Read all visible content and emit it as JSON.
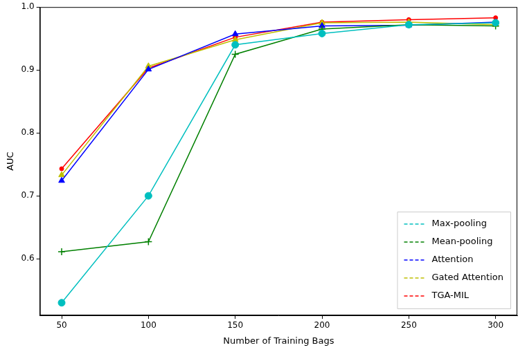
{
  "chart_data": {
    "type": "line",
    "x_label": "Number of Training Bags",
    "y_label": "AUC",
    "x": [
      50,
      100,
      150,
      200,
      250,
      300
    ],
    "xlim": [
      37.5,
      312.5
    ],
    "xticks": [
      50,
      100,
      150,
      200,
      250,
      300
    ],
    "ylim": [
      0.51,
      1.0
    ],
    "yticks": [
      0.6,
      0.7,
      0.8,
      0.9,
      {
        "value": 1,
        "label": "1.0"
      }
    ],
    "grid": false,
    "legend": "lower right",
    "series": [
      {
        "name": "Max-pooling",
        "color": "#00bfbf",
        "marker": "circle",
        "line_style": "solid",
        "values": [
          0.53,
          0.7,
          0.94,
          0.958,
          0.972,
          0.975
        ]
      },
      {
        "name": "Mean-pooling",
        "color": "#008000",
        "marker": "plus",
        "line_style": "solid",
        "values": [
          0.611,
          0.627,
          0.925,
          0.965,
          0.972,
          0.97
        ]
      },
      {
        "name": "Attention",
        "color": "#0000ff",
        "marker": "triangle",
        "line_style": "solid",
        "values": [
          0.724,
          0.901,
          0.957,
          0.97,
          0.971,
          0.976
        ]
      },
      {
        "name": "Gated Attention",
        "color": "#bfbf00",
        "marker": "triangle",
        "line_style": "solid",
        "values": [
          0.733,
          0.906,
          0.948,
          0.975,
          0.976,
          0.972
        ]
      },
      {
        "name": "TGA-MIL",
        "color": "#ff0000",
        "marker": "dot",
        "line_style": "solid",
        "values": [
          0.743,
          0.903,
          0.952,
          0.976,
          0.98,
          0.983
        ]
      }
    ]
  }
}
